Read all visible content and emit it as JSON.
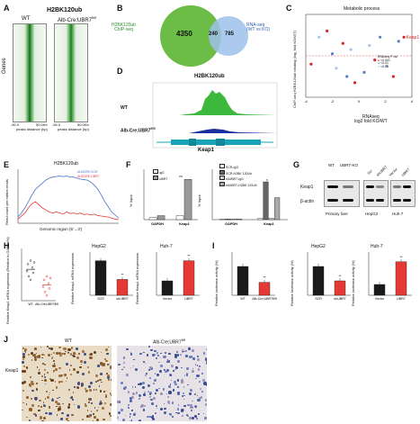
{
  "panels": {
    "A": {
      "letter": "A",
      "title": "H2BK120ub",
      "col_wt": "WT",
      "col_ko": "Alb-Cre;UBR7",
      "col_ko_sup": "fl/fl",
      "y_label": "Genes",
      "x_label": "peaks distance (bp)",
      "tick_left": "-50.0",
      "tick_right": "50.0Kb"
    },
    "B": {
      "letter": "B",
      "left_label_1": "H2BK120ub",
      "left_label_2": "ChIP-seq",
      "right_label_1": "RNA-seq",
      "right_label_2": "(WT vs KO)",
      "left_only": "4350",
      "overlap": "240",
      "right_only": "785"
    },
    "C": {
      "letter": "C",
      "title": "Metabolic process",
      "y_label_1": "ChIP-seq H2BK120ub binding",
      "y_label_2": "(log₂ fold KO/WT)",
      "x_label_1": "RNAseq",
      "x_label_2": "log2 fold KO/WT",
      "x_ticks": [
        "-4",
        "-2",
        "0",
        "2",
        "4"
      ],
      "highlight": "Keap1",
      "legend_title": "RNAseq P val",
      "legend": [
        "<0.001",
        "<0.01",
        "<0.05"
      ]
    },
    "D": {
      "letter": "D",
      "title": "H2BK120ub",
      "track_wt": "WT",
      "track_ko": "Alb-Cre;UBR7",
      "track_ko_sup": "fl/fl",
      "gene": "Keap1"
    },
    "E": {
      "letter": "E",
      "title": "H2BK120ub",
      "y_label_1": "Read count per million reads",
      "legend_1": "ALBCRE-SCR",
      "legend_2": "ALBCRE-UBR7",
      "x_label": "Genomic region (5'→3')"
    },
    "F": {
      "letter": "F",
      "y_label": "% Input",
      "left_legend": [
        "IgG",
        "UBR7"
      ],
      "left_cats": [
        "GAPDH",
        "Keap1"
      ],
      "right_legend": [
        "SCR-IgG",
        "SCR-H2BK 120Ub",
        "shUBR7-IgG",
        "shUBR7-H2BK 120Ub"
      ],
      "right_cats": [
        "GAPDH",
        "Keap1"
      ],
      "sig": "**",
      "sig2": "*"
    },
    "G": {
      "letter": "G",
      "cols": [
        "WT",
        "UBR7-KO",
        "Scr",
        "shUBR7",
        "Vector",
        "UBR7"
      ],
      "rows": [
        "Keap1",
        "β-actin"
      ],
      "groups": [
        "Primary liver",
        "HepG2",
        "Huh-7"
      ]
    },
    "H": {
      "letter": "H",
      "y_label_1": "Relative Keap1 mRNA expression",
      "y_label_2": "(Relative to GAPDH%)",
      "plot1_cats": [
        "WT",
        "Alb-Cre;UBR7fl/fl"
      ],
      "plot2_title": "HepG2",
      "plot2_cats": [
        "SCR",
        "shUBR7"
      ],
      "plot3_title": "Huh-7",
      "plot3_cats": [
        "Vector",
        "UBR7"
      ],
      "sig": "**"
    },
    "I": {
      "letter": "I",
      "y_label": "Relative luciferase activity (%)",
      "plot1_cats": [
        "WT",
        "Alb-Cre;UBR7fl/fl"
      ],
      "plot2_title": "HepG2",
      "plot2_cats": [
        "SCR",
        "shUBR7"
      ],
      "plot3_title": "Huh-7",
      "plot3_cats": [
        "Vector",
        "UBR7"
      ],
      "sig": "**"
    },
    "J": {
      "letter": "J",
      "col_wt": "WT",
      "col_ko": "Alb-Cre;UBR7",
      "col_ko_sup": "fl/fl",
      "row_label": "Keap1"
    }
  },
  "chart_data": [
    {
      "type": "scatter",
      "panel": "C",
      "xlim": [
        -4,
        4
      ],
      "ylim": [
        -2,
        2
      ],
      "points": [
        {
          "x": -3.6,
          "y": -0.4,
          "p": "<0.001"
        },
        {
          "x": -3.0,
          "y": 0.9,
          "p": "<0.05"
        },
        {
          "x": -2.4,
          "y": 1.2,
          "p": "<0.001"
        },
        {
          "x": -2.0,
          "y": 0.1,
          "p": "<0.01"
        },
        {
          "x": -1.7,
          "y": -0.6,
          "p": "<0.05"
        },
        {
          "x": -1.2,
          "y": 0.6,
          "p": "<0.001"
        },
        {
          "x": -0.9,
          "y": -1.0,
          "p": "<0.01"
        },
        {
          "x": -0.6,
          "y": 0.3,
          "p": "<0.05"
        },
        {
          "x": -0.3,
          "y": -1.3,
          "p": "<0.001"
        },
        {
          "x": 0.4,
          "y": -0.8,
          "p": "<0.01"
        },
        {
          "x": 0.8,
          "y": 0.5,
          "p": "<0.05"
        },
        {
          "x": 1.2,
          "y": -0.2,
          "p": "<0.001"
        },
        {
          "x": 1.6,
          "y": 0.9,
          "p": "<0.01"
        },
        {
          "x": 2.1,
          "y": -0.5,
          "p": "<0.05"
        },
        {
          "x": 2.6,
          "y": -1.0,
          "p": "<0.001"
        },
        {
          "x": 3.0,
          "y": 0.7,
          "p": "<0.01"
        },
        {
          "x": 3.4,
          "y": 0.9,
          "p": "<0.001",
          "label": "Keap1"
        }
      ],
      "colors": {
        "<0.001": "#d62728",
        "<0.01": "#5b7fc7",
        "<0.05": "#a9c6e8"
      }
    },
    {
      "type": "line",
      "panel": "E",
      "series": [
        {
          "name": "ALBCRE-SCR",
          "color": "#4a74c9",
          "values": [
            0.12,
            0.2,
            0.3,
            0.42,
            0.55,
            0.66,
            0.72,
            0.78,
            0.84,
            0.88,
            0.9,
            0.91,
            0.92,
            0.91,
            0.92,
            0.9,
            0.9,
            0.88,
            0.86,
            0.85,
            0.84,
            0.8,
            0.74,
            0.66,
            0.55,
            0.42,
            0.32,
            0.22,
            0.16,
            0.1
          ]
        },
        {
          "name": "ALBCRE-UBR7",
          "color": "#e53935",
          "values": [
            0.08,
            0.14,
            0.2,
            0.3,
            0.38,
            0.42,
            0.36,
            0.3,
            0.26,
            0.22,
            0.2,
            0.22,
            0.2,
            0.18,
            0.22,
            0.19,
            0.2,
            0.18,
            0.2,
            0.17,
            0.18,
            0.16,
            0.18,
            0.15,
            0.14,
            0.13,
            0.12,
            0.1,
            0.08,
            0.07
          ]
        }
      ]
    },
    {
      "type": "bar",
      "panel": "F-left",
      "categories": [
        "GAPDH",
        "Keap1"
      ],
      "series": [
        {
          "name": "IgG",
          "color": "#ffffff",
          "values": [
            0.01,
            0.02
          ]
        },
        {
          "name": "UBR7",
          "color": "#999999",
          "values": [
            0.02,
            0.2
          ]
        }
      ],
      "ylim": [
        0,
        0.25
      ]
    },
    {
      "type": "bar",
      "panel": "F-right",
      "categories": [
        "GAPDH",
        "Keap1"
      ],
      "series": [
        {
          "name": "SCR-IgG",
          "color": "#ffffff",
          "values": [
            0.01,
            0.02
          ]
        },
        {
          "name": "SCR-H2BK 120Ub",
          "color": "#666666",
          "values": [
            0.01,
            0.6
          ]
        },
        {
          "name": "shUBR7-IgG",
          "color": "#cccccc",
          "values": [
            0.01,
            0.02
          ]
        },
        {
          "name": "shUBR7-H2BK 120Ub",
          "color": "#aaaaaa",
          "values": [
            0.01,
            0.35
          ]
        }
      ],
      "ylim": [
        0,
        0.8
      ]
    },
    {
      "type": "bar",
      "panel": "H-1",
      "categories": [
        "WT",
        "Alb-Cre;UBR7fl/fl"
      ],
      "values": [
        1.8,
        0.9
      ],
      "ylim": [
        0,
        3
      ]
    },
    {
      "type": "bar",
      "panel": "H-2",
      "categories": [
        "SCR",
        "shUBR7"
      ],
      "values": [
        1.2,
        0.55
      ],
      "ylim": [
        0,
        1.5
      ]
    },
    {
      "type": "bar",
      "panel": "H-3",
      "categories": [
        "Vector",
        "UBR7"
      ],
      "values": [
        1.0,
        2.4
      ],
      "ylim": [
        0,
        3
      ]
    },
    {
      "type": "bar",
      "panel": "I-1",
      "categories": [
        "WT",
        "Alb-Cre;UBR7fl/fl"
      ],
      "values": [
        100,
        45
      ],
      "ylim": [
        0,
        150
      ]
    },
    {
      "type": "bar",
      "panel": "I-2",
      "categories": [
        "SCR",
        "shUBR7"
      ],
      "values": [
        100,
        50
      ],
      "ylim": [
        0,
        150
      ]
    },
    {
      "type": "bar",
      "panel": "I-3",
      "categories": [
        "Vector",
        "UBR7"
      ],
      "values": [
        100,
        310
      ],
      "ylim": [
        0,
        400
      ]
    }
  ]
}
